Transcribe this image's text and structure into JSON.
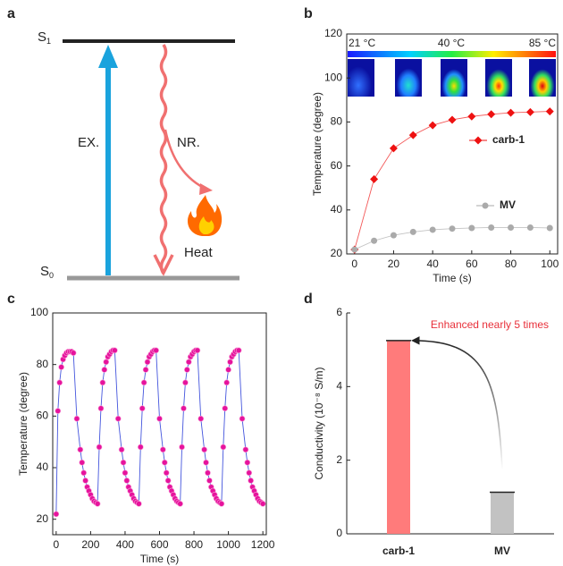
{
  "diagram": {
    "panel": "a",
    "upper_level": {
      "base": "S",
      "sub": "1"
    },
    "lower_level": {
      "base": "S",
      "sub": "0"
    },
    "excitation": "EX.",
    "nonradiative": "NR.",
    "heat": "Heat"
  },
  "chart_data": [
    {
      "panel": "b",
      "type": "line",
      "x_label": "Time (s)",
      "y_label": "Temperature (degree)",
      "x": [
        0,
        10,
        20,
        30,
        40,
        50,
        60,
        70,
        80,
        90,
        100
      ],
      "series": [
        {
          "name": "carb-1",
          "color": "#ee1111",
          "marker": "diamond",
          "values": [
            22,
            54,
            68,
            74,
            78.5,
            81,
            82.5,
            83.5,
            84.2,
            84.5,
            84.8
          ]
        },
        {
          "name": "MV",
          "color": "#aaaaaa",
          "marker": "circle",
          "values": [
            22,
            26,
            28.5,
            30,
            31,
            31.5,
            31.8,
            32,
            32,
            32,
            31.8
          ]
        }
      ],
      "xlim": [
        -4,
        104
      ],
      "ylim": [
        20,
        120
      ],
      "xticks": [
        0,
        20,
        40,
        60,
        80,
        100
      ],
      "yticks": [
        20,
        40,
        60,
        80,
        100,
        120
      ],
      "inset_labels": [
        "21 °C",
        "40 °C",
        "85 °C"
      ]
    },
    {
      "panel": "c",
      "type": "line",
      "x_label": "Time (s)",
      "y_label": "Temperature (degree)",
      "x": [
        0,
        10,
        20,
        30,
        40,
        50,
        60,
        70,
        80,
        90,
        100,
        120,
        140,
        150,
        160,
        170,
        180,
        190,
        200,
        210,
        220,
        230,
        240,
        250,
        260,
        270,
        280,
        290,
        300,
        310,
        320,
        330,
        340,
        360,
        380,
        390,
        400,
        410,
        420,
        430,
        440,
        450,
        460,
        470,
        480,
        490,
        500,
        510,
        520,
        530,
        540,
        550,
        560,
        570,
        580,
        600,
        620,
        630,
        640,
        650,
        660,
        670,
        680,
        690,
        700,
        710,
        720,
        730,
        740,
        750,
        760,
        770,
        780,
        790,
        800,
        810,
        820,
        840,
        860,
        870,
        880,
        890,
        900,
        910,
        920,
        930,
        940,
        950,
        960,
        970,
        980,
        990,
        1000,
        1010,
        1020,
        1030,
        1040,
        1050,
        1060,
        1080,
        1100,
        1110,
        1120,
        1130,
        1140,
        1150,
        1160,
        1170,
        1180,
        1190,
        1200
      ],
      "series": [
        {
          "color": "#e6139c",
          "line_color": "#4455dd",
          "marker": "sphere",
          "values": [
            22,
            62,
            73,
            79,
            82,
            83.5,
            84.5,
            85,
            85,
            85,
            84.5,
            59,
            47,
            42,
            38,
            35,
            32.5,
            31,
            29.5,
            28,
            27,
            26.5,
            26,
            48,
            63,
            73,
            78,
            81,
            83,
            84,
            85,
            85.5,
            85.5,
            59,
            47,
            42,
            38,
            35,
            32.5,
            31,
            29.5,
            28,
            27,
            26.5,
            26,
            48,
            63,
            73,
            78,
            81,
            83,
            84,
            85,
            85.5,
            85.5,
            59,
            47,
            42,
            38,
            35,
            32.5,
            31,
            29.5,
            28,
            27,
            26.5,
            26,
            48,
            63,
            73,
            78,
            81,
            83,
            84,
            85,
            85.5,
            85.5,
            59,
            47,
            42,
            38,
            35,
            32.5,
            31,
            29.5,
            28,
            27,
            26.5,
            26,
            48,
            63,
            73,
            78,
            81,
            83,
            84,
            85,
            85.5,
            85.5,
            59,
            47,
            42,
            38,
            35,
            32.5,
            31,
            29.5,
            28,
            27,
            26.5,
            26
          ]
        }
      ],
      "xlim": [
        -20,
        1220
      ],
      "ylim": [
        14,
        100
      ],
      "xticks": [
        0,
        200,
        400,
        600,
        800,
        1000,
        1200
      ],
      "yticks": [
        20,
        40,
        60,
        80,
        100
      ]
    },
    {
      "panel": "d",
      "type": "bar",
      "y_label": "Conductivity (10⁻⁸ S/m)",
      "categories": [
        "carb-1",
        "MV"
      ],
      "values": [
        5.25,
        1.13
      ],
      "colors": [
        "#ff7b7b",
        "#c2c2c2"
      ],
      "ylim": [
        0,
        6
      ],
      "yticks": [
        0,
        2,
        4,
        6
      ],
      "annotation": "Enhanced nearly 5 times"
    }
  ]
}
